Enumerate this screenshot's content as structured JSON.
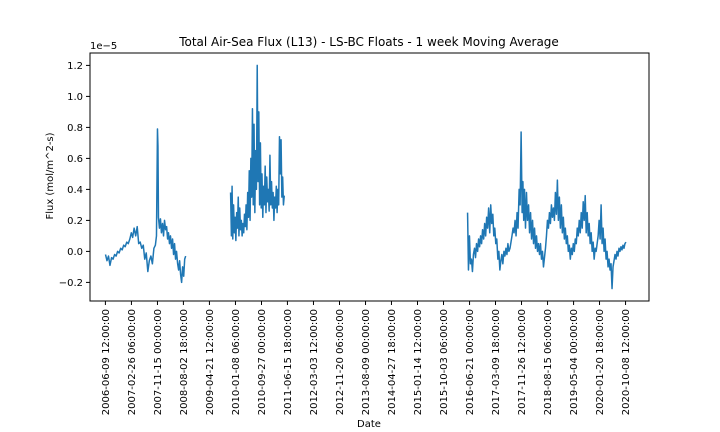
{
  "chart_data": {
    "type": "line",
    "title": "Total Air-Sea Flux (L13) - LS-BC Floats - 1 week Moving Average",
    "xlabel": "Date",
    "ylabel": "Flux (mol/m^2-s)",
    "y_offset_label": "1e−5",
    "y_scale": 1e-05,
    "grid": false,
    "line_color": "#1f77b4",
    "xlim": [
      "2006-01-05",
      "2021-06-01"
    ],
    "ylim": [
      -0.32,
      1.28
    ],
    "yticks": [
      -0.2,
      0.0,
      0.2,
      0.4,
      0.6,
      0.8,
      1.0,
      1.2
    ],
    "ytick_labels": [
      "−0.2",
      "0.0",
      "0.2",
      "0.4",
      "0.6",
      "0.8",
      "1.0",
      "1.2"
    ],
    "xticks": [
      "2006-06-09",
      "2007-02-26",
      "2007-11-15",
      "2008-08-02",
      "2009-04-21",
      "2010-01-08",
      "2010-09-27",
      "2011-06-15",
      "2012-03-03",
      "2012-11-20",
      "2013-08-09",
      "2014-04-27",
      "2015-01-14",
      "2015-10-03",
      "2016-06-21",
      "2017-03-09",
      "2017-11-26",
      "2018-08-15",
      "2019-05-04",
      "2020-01-20",
      "2020-10-08"
    ],
    "xtick_labels": [
      "2006-06-09 12:00:00",
      "2007-02-26 06:00:00",
      "2007-11-15 00:00:00",
      "2008-08-02 18:00:00",
      "2009-04-21 12:00:00",
      "2010-01-08 06:00:00",
      "2010-09-27 00:00:00",
      "2011-06-15 18:00:00",
      "2012-03-03 12:00:00",
      "2012-11-20 06:00:00",
      "2013-08-09 00:00:00",
      "2014-04-27 18:00:00",
      "2015-01-14 12:00:00",
      "2015-10-03 06:00:00",
      "2016-06-21 00:00:00",
      "2017-03-09 18:00:00",
      "2017-11-26 12:00:00",
      "2018-08-15 06:00:00",
      "2019-05-04 00:00:00",
      "2020-01-20 18:00:00",
      "2020-10-08 12:00:00"
    ],
    "series": [
      {
        "x": [
          "2006-06-10",
          "2006-06-25",
          "2006-07-10",
          "2006-07-25",
          "2006-08-10",
          "2006-08-25",
          "2006-09-10",
          "2006-09-25",
          "2006-10-10",
          "2006-10-25",
          "2006-11-10",
          "2006-11-25",
          "2006-12-10",
          "2006-12-25",
          "2007-01-10",
          "2007-01-25",
          "2007-02-10",
          "2007-02-25",
          "2007-03-10",
          "2007-03-25",
          "2007-04-10",
          "2007-04-25",
          "2007-05-10",
          "2007-05-25",
          "2007-06-10",
          "2007-06-25",
          "2007-07-10",
          "2007-07-25",
          "2007-08-10",
          "2007-08-25",
          "2007-09-10",
          "2007-09-25",
          "2007-10-10",
          "2007-10-25",
          "2007-11-05",
          "2007-11-15",
          "2007-11-20",
          "2007-11-25",
          "2007-12-05",
          "2007-12-15",
          "2007-12-25",
          "2008-01-05",
          "2008-01-15",
          "2008-01-25",
          "2008-02-05",
          "2008-02-15",
          "2008-02-25",
          "2008-03-05",
          "2008-03-15",
          "2008-03-25",
          "2008-04-05",
          "2008-04-15",
          "2008-04-25",
          "2008-05-05",
          "2008-05-15",
          "2008-05-25",
          "2008-06-05",
          "2008-06-15",
          "2008-06-25",
          "2008-07-05",
          "2008-07-15",
          "2008-07-25",
          "2008-08-05",
          "2008-08-15",
          "2008-08-25"
        ],
        "values": [
          -0.02,
          -0.06,
          -0.03,
          -0.09,
          -0.04,
          -0.05,
          -0.02,
          -0.03,
          0.0,
          -0.01,
          0.02,
          0.01,
          0.04,
          0.03,
          0.06,
          0.05,
          0.08,
          0.12,
          0.09,
          0.15,
          0.1,
          0.16,
          0.05,
          0.06,
          0.02,
          0.04,
          -0.05,
          -0.01,
          -0.13,
          -0.06,
          -0.03,
          -0.08,
          0.02,
          0.04,
          0.1,
          0.79,
          0.68,
          0.22,
          0.15,
          0.21,
          0.12,
          0.18,
          0.1,
          0.2,
          0.14,
          0.16,
          0.08,
          0.12,
          0.05,
          0.1,
          0.02,
          0.08,
          -0.02,
          0.05,
          -0.05,
          0.0,
          -0.08,
          -0.12,
          -0.06,
          -0.15,
          -0.2,
          -0.1,
          -0.16,
          -0.05,
          -0.03
        ]
      },
      {
        "x": [
          "2009-11-20",
          "2009-11-28",
          "2009-12-05",
          "2009-12-12",
          "2009-12-20",
          "2009-12-28",
          "2010-01-05",
          "2010-01-12",
          "2010-01-20",
          "2010-01-28",
          "2010-02-05",
          "2010-02-12",
          "2010-02-20",
          "2010-02-28",
          "2010-03-08",
          "2010-03-16",
          "2010-03-24",
          "2010-04-01",
          "2010-04-09",
          "2010-04-17",
          "2010-04-25",
          "2010-05-03",
          "2010-05-11",
          "2010-05-19",
          "2010-05-27",
          "2010-06-04",
          "2010-06-12",
          "2010-06-20",
          "2010-06-28",
          "2010-07-06",
          "2010-07-14",
          "2010-07-22",
          "2010-07-30",
          "2010-08-07",
          "2010-08-15",
          "2010-08-23",
          "2010-08-31",
          "2010-09-08",
          "2010-09-16",
          "2010-09-24",
          "2010-10-02",
          "2010-10-10",
          "2010-10-18",
          "2010-10-26",
          "2010-11-03",
          "2010-11-11",
          "2010-11-19",
          "2010-11-27",
          "2010-12-05",
          "2010-12-13",
          "2010-12-21",
          "2010-12-29",
          "2011-01-06",
          "2011-01-14",
          "2011-01-22",
          "2011-01-30",
          "2011-02-07",
          "2011-02-15",
          "2011-02-23",
          "2011-03-03",
          "2011-03-11",
          "2011-03-19",
          "2011-03-27",
          "2011-04-04",
          "2011-04-12",
          "2011-04-20",
          "2011-04-28",
          "2011-05-06",
          "2011-05-14"
        ],
        "values": [
          0.38,
          0.1,
          0.42,
          0.08,
          0.3,
          0.12,
          0.22,
          0.07,
          0.25,
          0.15,
          0.35,
          0.1,
          0.28,
          0.14,
          0.2,
          0.1,
          0.18,
          0.12,
          0.24,
          0.16,
          0.3,
          0.14,
          0.38,
          0.22,
          0.52,
          0.2,
          0.6,
          0.35,
          0.92,
          0.3,
          0.82,
          0.25,
          0.65,
          0.4,
          1.2,
          0.45,
          0.9,
          0.3,
          0.7,
          0.28,
          0.5,
          0.22,
          0.42,
          0.3,
          0.55,
          0.25,
          0.48,
          0.32,
          0.4,
          0.26,
          0.62,
          0.3,
          0.45,
          0.28,
          0.38,
          0.2,
          0.35,
          0.28,
          0.42,
          0.25,
          0.4,
          0.3,
          0.74,
          0.5,
          0.72,
          0.35,
          0.48,
          0.3,
          0.36
        ]
      },
      {
        "x": [
          "2016-06-01",
          "2016-06-10",
          "2016-06-20",
          "2016-06-30",
          "2016-07-10",
          "2016-07-20",
          "2016-07-30",
          "2016-08-10",
          "2016-08-20",
          "2016-08-30",
          "2016-09-10",
          "2016-09-20",
          "2016-09-30",
          "2016-10-10",
          "2016-10-20",
          "2016-10-30",
          "2016-11-10",
          "2016-11-20",
          "2016-11-30",
          "2016-12-10",
          "2016-12-20",
          "2016-12-30",
          "2017-01-10",
          "2017-01-20",
          "2017-01-30",
          "2017-02-10",
          "2017-02-20",
          "2017-03-02",
          "2017-03-12",
          "2017-03-22",
          "2017-04-02",
          "2017-04-12",
          "2017-04-22",
          "2017-05-02",
          "2017-05-12",
          "2017-05-22",
          "2017-06-02",
          "2017-06-12",
          "2017-06-22",
          "2017-07-02",
          "2017-07-12",
          "2017-07-22",
          "2017-08-02",
          "2017-08-12",
          "2017-08-22",
          "2017-09-02",
          "2017-09-12",
          "2017-09-22",
          "2017-10-02",
          "2017-10-12",
          "2017-10-22",
          "2017-11-02",
          "2017-11-12",
          "2017-11-22",
          "2017-12-02",
          "2017-12-10",
          "2017-12-18",
          "2017-12-26",
          "2018-01-05",
          "2018-01-15",
          "2018-01-25",
          "2018-02-05",
          "2018-02-15",
          "2018-02-25",
          "2018-03-07",
          "2018-03-17",
          "2018-03-27",
          "2018-04-06",
          "2018-04-16",
          "2018-04-26",
          "2018-05-06",
          "2018-05-16",
          "2018-05-26",
          "2018-06-05",
          "2018-06-15",
          "2018-06-25",
          "2018-07-05",
          "2018-07-15",
          "2018-07-25",
          "2018-08-04",
          "2018-08-14",
          "2018-08-24",
          "2018-09-03",
          "2018-09-13",
          "2018-09-23",
          "2018-10-03",
          "2018-10-13",
          "2018-10-23",
          "2018-11-02",
          "2018-11-12",
          "2018-11-22",
          "2018-12-02",
          "2018-12-12",
          "2018-12-22",
          "2019-01-01",
          "2019-01-11",
          "2019-01-21",
          "2019-01-31",
          "2019-02-10",
          "2019-02-20",
          "2019-03-02",
          "2019-03-12",
          "2019-03-22",
          "2019-04-01",
          "2019-04-11",
          "2019-04-21",
          "2019-05-01",
          "2019-05-11",
          "2019-05-21",
          "2019-05-31",
          "2019-06-10",
          "2019-06-20",
          "2019-06-30",
          "2019-07-10",
          "2019-07-20",
          "2019-07-30",
          "2019-08-09",
          "2019-08-19",
          "2019-08-29",
          "2019-09-08",
          "2019-09-18",
          "2019-09-28",
          "2019-10-08",
          "2019-10-18",
          "2019-10-28",
          "2019-11-07",
          "2019-11-17",
          "2019-11-27",
          "2019-12-07",
          "2019-12-17",
          "2019-12-27",
          "2020-01-06",
          "2020-01-16",
          "2020-01-26",
          "2020-02-05",
          "2020-02-15",
          "2020-02-25",
          "2020-03-06",
          "2020-03-16",
          "2020-03-26",
          "2020-04-05",
          "2020-04-15",
          "2020-04-25",
          "2020-05-05",
          "2020-05-15",
          "2020-05-25",
          "2020-06-04",
          "2020-06-14",
          "2020-06-24",
          "2020-07-04",
          "2020-07-14",
          "2020-07-24",
          "2020-08-03",
          "2020-08-13",
          "2020-08-23",
          "2020-09-02",
          "2020-09-12",
          "2020-09-22",
          "2020-10-02",
          "2020-10-12"
        ],
        "values": [
          0.25,
          -0.12,
          0.1,
          -0.08,
          -0.05,
          -0.13,
          -0.02,
          0.02,
          -0.04,
          0.05,
          0.0,
          0.08,
          0.03,
          0.1,
          0.05,
          0.14,
          0.08,
          0.18,
          0.1,
          0.22,
          0.15,
          0.28,
          0.12,
          0.3,
          0.18,
          0.24,
          0.1,
          0.15,
          0.05,
          0.08,
          -0.05,
          0.0,
          -0.12,
          -0.06,
          -0.02,
          -0.08,
          0.0,
          -0.03,
          0.02,
          -0.02,
          0.05,
          0.0,
          0.02,
          0.06,
          0.1,
          0.15,
          0.12,
          0.2,
          0.1,
          0.25,
          0.15,
          0.4,
          0.3,
          0.77,
          0.25,
          0.45,
          0.2,
          0.4,
          0.15,
          0.38,
          0.2,
          0.3,
          0.12,
          0.25,
          0.08,
          0.2,
          0.05,
          0.15,
          0.02,
          0.1,
          0.0,
          0.05,
          -0.02,
          0.05,
          -0.05,
          0.0,
          -0.1,
          -0.04,
          0.02,
          0.1,
          0.2,
          0.15,
          0.25,
          0.18,
          0.3,
          0.22,
          0.28,
          0.2,
          0.38,
          0.24,
          0.46,
          0.2,
          0.35,
          0.15,
          0.3,
          0.12,
          0.22,
          0.08,
          0.15,
          0.05,
          0.1,
          0.0,
          0.04,
          -0.05,
          0.02,
          -0.02,
          0.05,
          0.0,
          0.08,
          0.05,
          0.15,
          0.1,
          0.2,
          0.12,
          0.25,
          0.15,
          0.32,
          0.2,
          0.36,
          0.12,
          0.25,
          0.1,
          0.18,
          0.05,
          0.12,
          0.0,
          0.06,
          -0.05,
          0.02,
          0.0,
          0.05,
          0.1,
          0.2,
          0.08,
          0.3,
          0.05,
          0.15,
          0.0,
          0.08,
          -0.05,
          0.0,
          -0.1,
          -0.05,
          -0.12,
          -0.08,
          -0.24,
          -0.1,
          -0.06,
          -0.02,
          -0.05,
          0.0,
          -0.03,
          0.02,
          0.0,
          0.03,
          0.01,
          0.04,
          0.02,
          0.05,
          0.06
        ]
      }
    ]
  }
}
